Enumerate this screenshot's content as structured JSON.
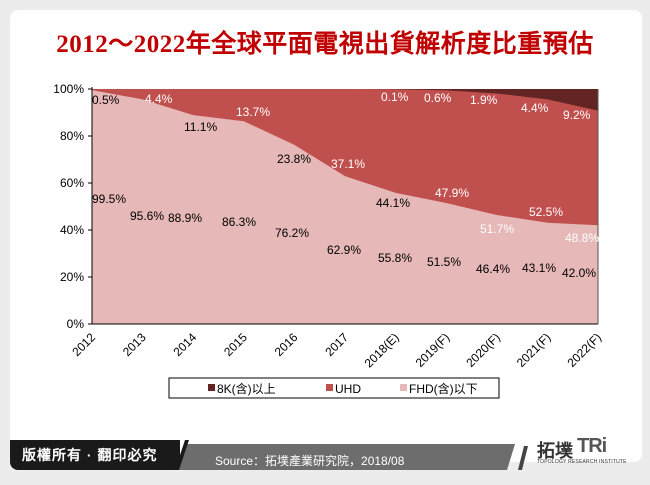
{
  "page": {
    "title": "2012～2022年全球平面電視出貨解析度比重預估",
    "copyright": "版權所有 · 翻印必究",
    "source": "Source：拓墣產業研究院，2018/08",
    "logo_cn": "拓墣",
    "logo_en": "TRi",
    "logo_sub": "TOPOLOGY RESEARCH INSTITUTE"
  },
  "colors": {
    "fhd": "#e6b8b7",
    "uhd": "#c0504d",
    "k8": "#632523",
    "title": "#c00000"
  },
  "chart_data": {
    "type": "area",
    "stacked": true,
    "percent": true,
    "title": "2012～2022年全球平面電視出貨解析度比重預估",
    "categories": [
      "2012",
      "2013",
      "2014",
      "2015",
      "2016",
      "2017",
      "2018(E)",
      "2019(F)",
      "2020(F)",
      "2021(F)",
      "2022(F)"
    ],
    "series": [
      {
        "name": "FHD(含)以下",
        "color": "#e6b8b7",
        "values": [
          99.5,
          95.6,
          88.9,
          86.3,
          76.2,
          62.9,
          55.8,
          51.5,
          46.4,
          43.1,
          42.0
        ],
        "labels": [
          "99.5%",
          "95.6%",
          "88.9%",
          "86.3%",
          "76.2%",
          "62.9%",
          "55.8%",
          "51.5%",
          "46.4%",
          "43.1%",
          "42.0%"
        ]
      },
      {
        "name": "UHD",
        "color": "#c0504d",
        "values": [
          0.5,
          4.4,
          11.1,
          13.7,
          23.8,
          37.1,
          44.1,
          47.9,
          51.7,
          52.5,
          48.8
        ],
        "labels": [
          "0.5%",
          "4.4%",
          "11.1%",
          "13.7%",
          "23.8%",
          "37.1%",
          "44.1%",
          "47.9%",
          "51.7%",
          "52.5%",
          "48.8%"
        ]
      },
      {
        "name": "8K(含)以上",
        "color": "#632523",
        "values": [
          0,
          0,
          0,
          0,
          0,
          0,
          0.1,
          0.6,
          1.9,
          4.4,
          9.2
        ],
        "labels": [
          "",
          "",
          "",
          "",
          "",
          "",
          "0.1%",
          "0.6%",
          "1.9%",
          "4.4%",
          "9.2%"
        ]
      }
    ],
    "yticks": [
      "0%",
      "20%",
      "40%",
      "60%",
      "80%",
      "100%"
    ],
    "ylim": [
      0,
      100
    ],
    "xlabel": "",
    "ylabel": "",
    "grid": false,
    "legend_position": "bottom",
    "legend": [
      "8K(含)以上",
      "UHD",
      "FHD(含)以下"
    ]
  }
}
